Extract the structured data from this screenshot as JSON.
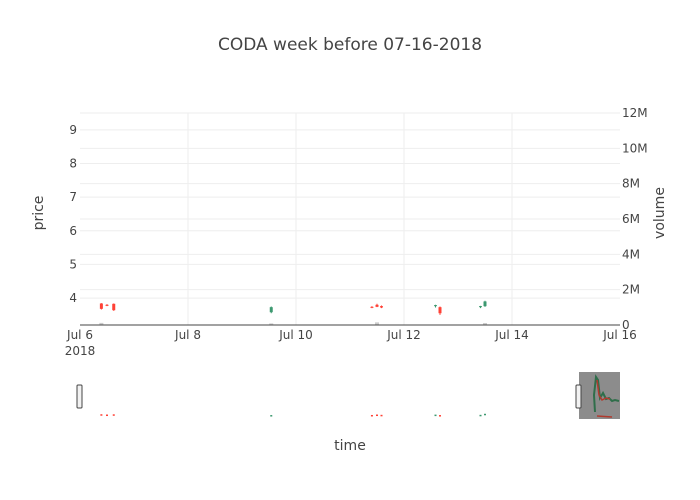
{
  "chart_data": {
    "type": "candlestick",
    "title": "CODA week before 07-16-2018",
    "xlabel": "time",
    "ylabel": "price",
    "y2label": "volume",
    "x_tick_labels": [
      "Jul 6",
      "Jul 8",
      "Jul 10",
      "Jul 12",
      "Jul 14",
      "Jul 16"
    ],
    "x_year_label": "2018",
    "xlim": [
      "2018-07-06",
      "2018-07-16"
    ],
    "y_ticks": [
      "4",
      "5",
      "6",
      "7",
      "8",
      "9"
    ],
    "ylim": [
      3.2,
      9.5
    ],
    "y2_ticks": [
      "0",
      "2M",
      "4M",
      "6M",
      "8M",
      "10M",
      "12M"
    ],
    "y2lim": [
      0,
      12000000
    ],
    "grid": true,
    "rangeslider": true,
    "colors": {
      "increasing": "#3d9970",
      "decreasing": "#ff4136",
      "volume": "#cccccc"
    },
    "candles": [
      {
        "t": "2018-07-06 09:30",
        "open": 3.84,
        "high": 3.85,
        "low": 3.66,
        "close": 3.68
      },
      {
        "t": "2018-07-06 12:00",
        "open": 3.8,
        "high": 3.82,
        "low": 3.76,
        "close": 3.77
      },
      {
        "t": "2018-07-06 15:00",
        "open": 3.83,
        "high": 3.84,
        "low": 3.62,
        "close": 3.64
      },
      {
        "t": "2018-07-09 13:00",
        "open": 3.58,
        "high": 3.75,
        "low": 3.55,
        "close": 3.73
      },
      {
        "t": "2018-07-11 09:45",
        "open": 3.74,
        "high": 3.76,
        "low": 3.7,
        "close": 3.71
      },
      {
        "t": "2018-07-11 12:00",
        "open": 3.8,
        "high": 3.83,
        "low": 3.73,
        "close": 3.74
      },
      {
        "t": "2018-07-11 14:00",
        "open": 3.76,
        "high": 3.78,
        "low": 3.7,
        "close": 3.72
      },
      {
        "t": "2018-07-12 14:00",
        "open": 3.76,
        "high": 3.8,
        "low": 3.72,
        "close": 3.79
      },
      {
        "t": "2018-07-12 16:00",
        "open": 3.73,
        "high": 3.75,
        "low": 3.5,
        "close": 3.55
      },
      {
        "t": "2018-07-13 10:00",
        "open": 3.74,
        "high": 3.77,
        "low": 3.7,
        "close": 3.76
      },
      {
        "t": "2018-07-13 12:00",
        "open": 3.76,
        "high": 3.92,
        "low": 3.74,
        "close": 3.9
      }
    ],
    "volume": [
      {
        "t": "2018-07-06 09:30",
        "v": 120000
      },
      {
        "t": "2018-07-09 13:00",
        "v": 90000
      },
      {
        "t": "2018-07-11 12:00",
        "v": 150000
      },
      {
        "t": "2018-07-13 12:00",
        "v": 110000
      }
    ]
  }
}
